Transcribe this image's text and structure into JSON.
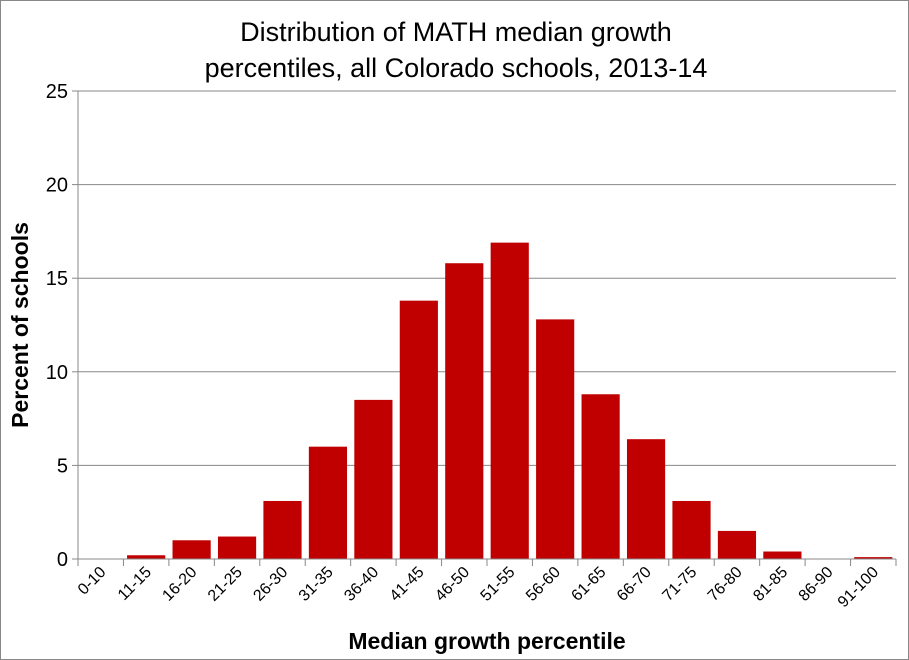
{
  "chart_data": {
    "type": "bar",
    "title": "Distribution of MATH median growth percentiles, all Colorado schools, 2013-14",
    "title_lines": [
      "Distribution of MATH median growth",
      "percentiles, all Colorado schools, 2013-14"
    ],
    "xlabel": "Median growth percentile",
    "ylabel": "Percent of schools",
    "categories": [
      "0-10",
      "11-15",
      "16-20",
      "21-25",
      "26-30",
      "31-35",
      "36-40",
      "41-45",
      "46-50",
      "51-55",
      "56-60",
      "61-65",
      "66-70",
      "71-75",
      "76-80",
      "81-85",
      "86-90",
      "91-100"
    ],
    "values": [
      0,
      0.2,
      1.0,
      1.2,
      3.1,
      6.0,
      8.5,
      13.8,
      15.8,
      16.9,
      12.8,
      8.8,
      6.4,
      3.1,
      1.5,
      0.4,
      0,
      0.1
    ],
    "ylim": [
      0,
      25
    ],
    "yticks": [
      0,
      5,
      10,
      15,
      20,
      25
    ],
    "grid": true,
    "bar_color": "#C00000"
  }
}
